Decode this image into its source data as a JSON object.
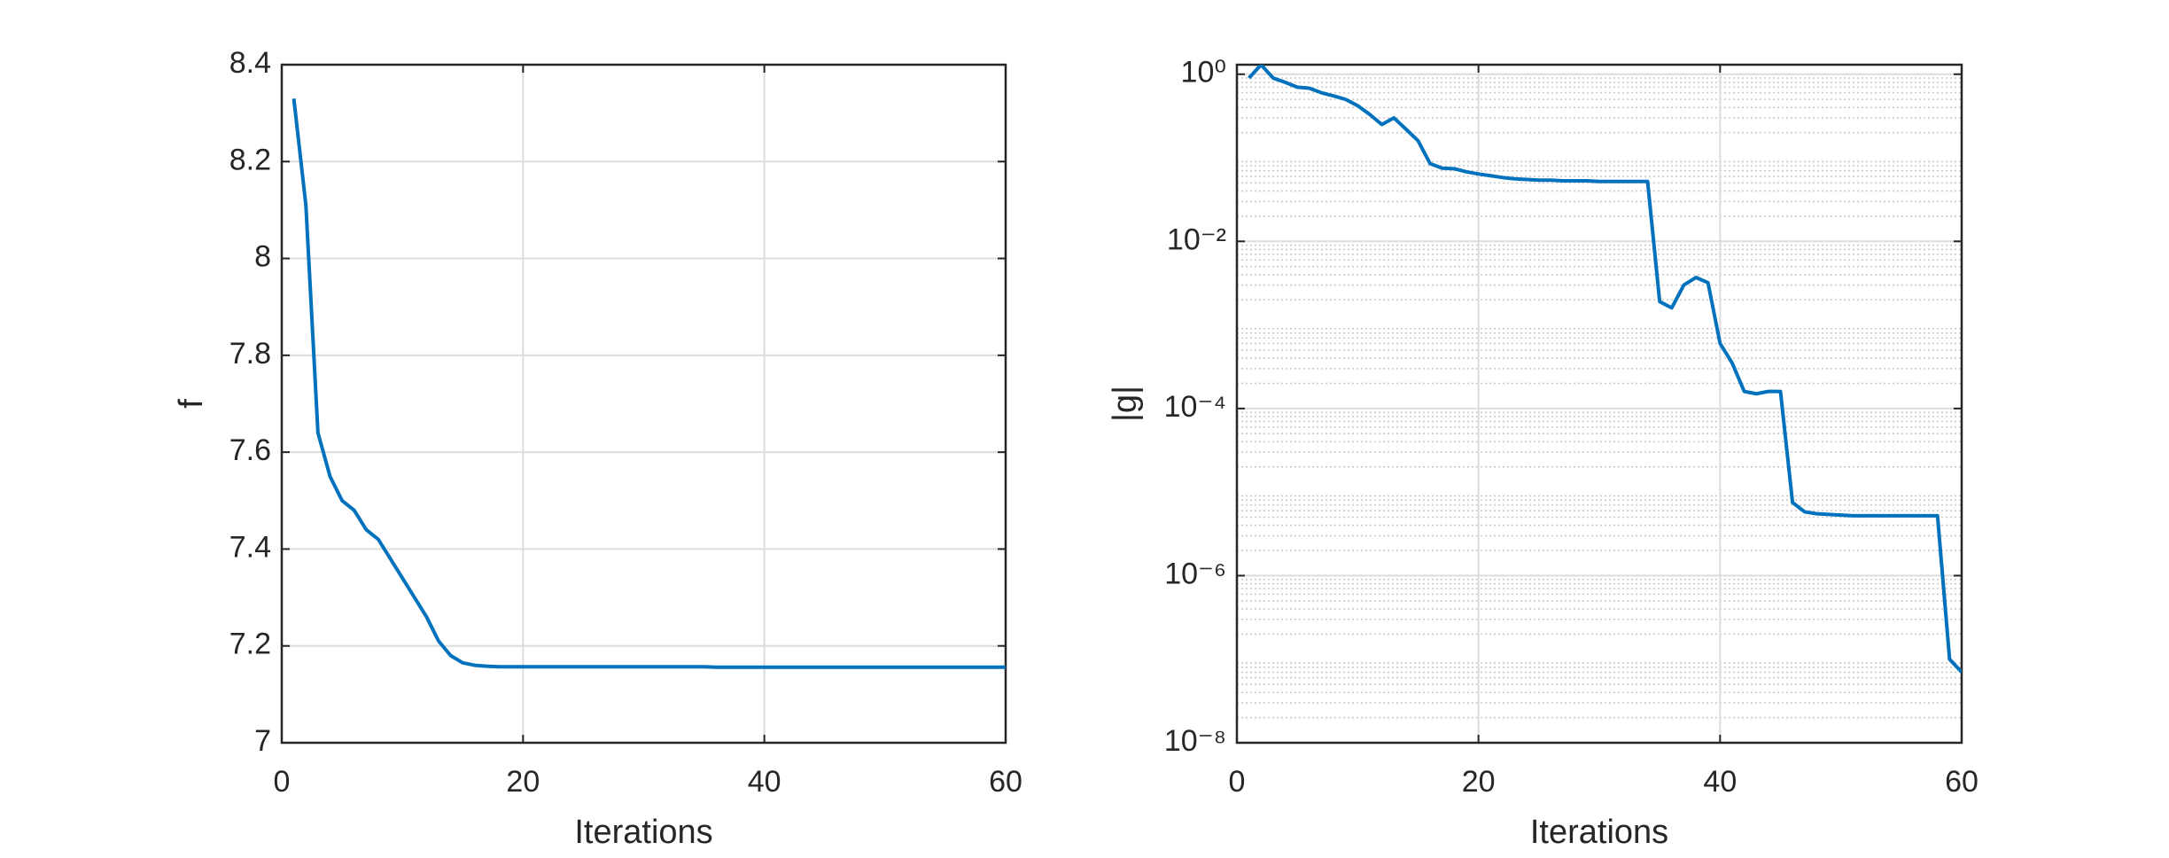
{
  "chart_data": [
    {
      "type": "line",
      "xlabel": "Iterations",
      "ylabel": "f",
      "color": "#0072bd",
      "grid": true,
      "xlim": [
        0,
        60
      ],
      "xticks": [
        0,
        20,
        40,
        60
      ],
      "ylim": [
        7,
        8.4
      ],
      "yticks": [
        7,
        7.2,
        7.4,
        7.6,
        7.8,
        8,
        8.2,
        8.4
      ],
      "x": [
        1,
        2,
        3,
        4,
        5,
        6,
        7,
        8,
        9,
        10,
        11,
        12,
        13,
        14,
        15,
        16,
        17,
        18,
        19,
        20,
        21,
        22,
        23,
        24,
        25,
        26,
        27,
        28,
        29,
        30,
        31,
        32,
        33,
        34,
        35,
        36,
        37,
        38,
        39,
        40,
        41,
        42,
        43,
        44,
        45,
        46,
        47,
        48,
        49,
        50,
        51,
        52,
        53,
        54,
        55,
        56,
        57,
        58,
        59,
        60
      ],
      "values": [
        8.33,
        8.11,
        7.64,
        7.55,
        7.5,
        7.48,
        7.44,
        7.42,
        7.38,
        7.34,
        7.3,
        7.26,
        7.21,
        7.18,
        7.165,
        7.16,
        7.158,
        7.157,
        7.157,
        7.157,
        7.157,
        7.157,
        7.157,
        7.157,
        7.157,
        7.157,
        7.157,
        7.157,
        7.157,
        7.157,
        7.157,
        7.157,
        7.157,
        7.157,
        7.157,
        7.156,
        7.156,
        7.156,
        7.156,
        7.156,
        7.156,
        7.156,
        7.156,
        7.156,
        7.156,
        7.156,
        7.156,
        7.156,
        7.156,
        7.156,
        7.156,
        7.156,
        7.156,
        7.156,
        7.156,
        7.156,
        7.156,
        7.156,
        7.156,
        7.156
      ]
    },
    {
      "type": "line",
      "xlabel": "Iterations",
      "ylabel": "|g|",
      "color": "#0072bd",
      "grid": true,
      "ylog": true,
      "minor_grid": true,
      "xlim": [
        0,
        60
      ],
      "xticks": [
        0,
        20,
        40,
        60
      ],
      "ylim": [
        1e-08,
        1.3
      ],
      "yticks": [
        {
          "value": 1e-08,
          "label": "10⁻⁸"
        },
        {
          "value": 1e-06,
          "label": "10⁻⁶"
        },
        {
          "value": 0.0001,
          "label": "10⁻⁴"
        },
        {
          "value": 0.01,
          "label": "10⁻²"
        },
        {
          "value": 1,
          "label": "10⁰"
        }
      ],
      "x": [
        1,
        2,
        3,
        4,
        5,
        6,
        7,
        8,
        9,
        10,
        11,
        12,
        13,
        14,
        15,
        16,
        17,
        18,
        19,
        20,
        21,
        22,
        23,
        24,
        25,
        26,
        27,
        28,
        29,
        30,
        31,
        32,
        33,
        34,
        35,
        36,
        37,
        38,
        39,
        40,
        41,
        42,
        43,
        44,
        45,
        46,
        47,
        48,
        49,
        50,
        51,
        52,
        53,
        54,
        55,
        56,
        57,
        58,
        59,
        60
      ],
      "values": [
        0.9,
        1.3,
        0.9,
        0.8,
        0.7,
        0.68,
        0.6,
        0.55,
        0.5,
        0.42,
        0.33,
        0.25,
        0.3,
        0.22,
        0.16,
        0.085,
        0.075,
        0.074,
        0.068,
        0.064,
        0.061,
        0.058,
        0.056,
        0.055,
        0.054,
        0.054,
        0.053,
        0.053,
        0.053,
        0.052,
        0.052,
        0.052,
        0.052,
        0.052,
        0.0019,
        0.0016,
        0.003,
        0.0037,
        0.0032,
        0.0006,
        0.00035,
        0.00016,
        0.00015,
        0.00016,
        0.00016,
        7.5e-06,
        5.8e-06,
        5.5e-06,
        5.4e-06,
        5.3e-06,
        5.2e-06,
        5.2e-06,
        5.2e-06,
        5.2e-06,
        5.2e-06,
        5.2e-06,
        5.2e-06,
        5.2e-06,
        1e-07,
        7e-08
      ]
    }
  ]
}
